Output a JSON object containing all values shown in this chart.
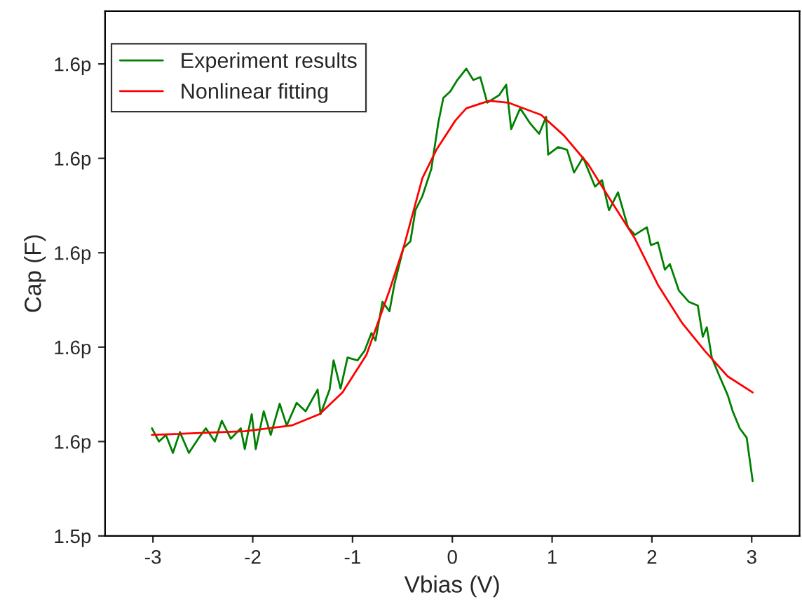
{
  "chart_data": {
    "type": "line",
    "xlabel": "Vbias (V)",
    "ylabel": "Cap (F)",
    "xlim": [
      -3.48,
      3.48
    ],
    "ylim": [
      1.54,
      1.5956
    ],
    "xticks": [
      -3,
      -2,
      -1,
      0,
      1,
      2,
      3
    ],
    "yticks": [
      {
        "value": 1.54,
        "label": "1.5p"
      },
      {
        "value": 1.55,
        "label": "1.6p"
      },
      {
        "value": 1.56,
        "label": "1.6p"
      },
      {
        "value": 1.57,
        "label": "1.6p"
      },
      {
        "value": 1.58,
        "label": "1.6p"
      },
      {
        "value": 1.59,
        "label": "1.6p"
      }
    ],
    "grid": false,
    "legend": "top left",
    "marker": "none",
    "line_style": "solid",
    "series": [
      {
        "name": "Experiment results",
        "color": "#008000",
        "x": [
          -3.01,
          -2.94,
          -2.87,
          -2.8,
          -2.73,
          -2.64,
          -2.54,
          -2.47,
          -2.38,
          -2.31,
          -2.22,
          -2.12,
          -2.08,
          -2.01,
          -1.97,
          -1.89,
          -1.82,
          -1.73,
          -1.66,
          -1.56,
          -1.47,
          -1.35,
          -1.32,
          -1.23,
          -1.19,
          -1.12,
          -1.05,
          -0.95,
          -0.88,
          -0.81,
          -0.77,
          -0.7,
          -0.63,
          -0.58,
          -0.49,
          -0.42,
          -0.37,
          -0.3,
          -0.21,
          -0.14,
          -0.09,
          -0.02,
          0.05,
          0.14,
          0.21,
          0.28,
          0.35,
          0.47,
          0.54,
          0.59,
          0.68,
          0.78,
          0.87,
          0.94,
          0.96,
          1.06,
          1.15,
          1.22,
          1.31,
          1.43,
          1.5,
          1.57,
          1.66,
          1.76,
          1.83,
          1.95,
          1.99,
          2.06,
          2.13,
          2.18,
          2.27,
          2.37,
          2.46,
          2.51,
          2.55,
          2.6,
          2.67,
          2.76,
          2.81,
          2.88,
          2.95,
          3.01
        ],
        "values": [
          1.5514,
          1.55,
          1.5507,
          1.5488,
          1.551,
          1.5488,
          1.5504,
          1.5514,
          1.55,
          1.5522,
          1.5503,
          1.5514,
          1.5492,
          1.5529,
          1.5492,
          1.5532,
          1.5507,
          1.554,
          1.5517,
          1.5541,
          1.5532,
          1.5555,
          1.5529,
          1.5555,
          1.5586,
          1.5556,
          1.5589,
          1.5586,
          1.5596,
          1.5615,
          1.5607,
          1.5648,
          1.5638,
          1.5667,
          1.5705,
          1.5712,
          1.5745,
          1.576,
          1.5789,
          1.5838,
          1.5864,
          1.5871,
          1.5883,
          1.5895,
          1.5883,
          1.5886,
          1.5859,
          1.5867,
          1.5878,
          1.5831,
          1.5853,
          1.5837,
          1.5826,
          1.5844,
          1.5804,
          1.5812,
          1.5809,
          1.5785,
          1.5801,
          1.577,
          1.5777,
          1.5745,
          1.5764,
          1.5727,
          1.5719,
          1.5727,
          1.5708,
          1.5711,
          1.5682,
          1.5688,
          1.566,
          1.5648,
          1.5644,
          1.5611,
          1.5621,
          1.5589,
          1.5571,
          1.5549,
          1.5532,
          1.5514,
          1.5504,
          1.5458
        ]
      },
      {
        "name": "Nonlinear fitting",
        "color": "#ff0000",
        "x": [
          -3.01,
          -2.08,
          -1.61,
          -1.33,
          -1.1,
          -0.86,
          -0.63,
          -0.49,
          -0.3,
          -0.16,
          0.03,
          0.14,
          0.37,
          0.56,
          0.89,
          1.12,
          1.36,
          1.59,
          1.83,
          2.06,
          2.3,
          2.53,
          2.76,
          3.01
        ],
        "values": [
          1.5507,
          1.5511,
          1.5517,
          1.5529,
          1.5552,
          1.5592,
          1.566,
          1.5705,
          1.5779,
          1.5809,
          1.584,
          1.5853,
          1.5861,
          1.5859,
          1.5846,
          1.5824,
          1.5794,
          1.5755,
          1.5715,
          1.5666,
          1.5626,
          1.5596,
          1.5569,
          1.5552
        ]
      }
    ]
  }
}
